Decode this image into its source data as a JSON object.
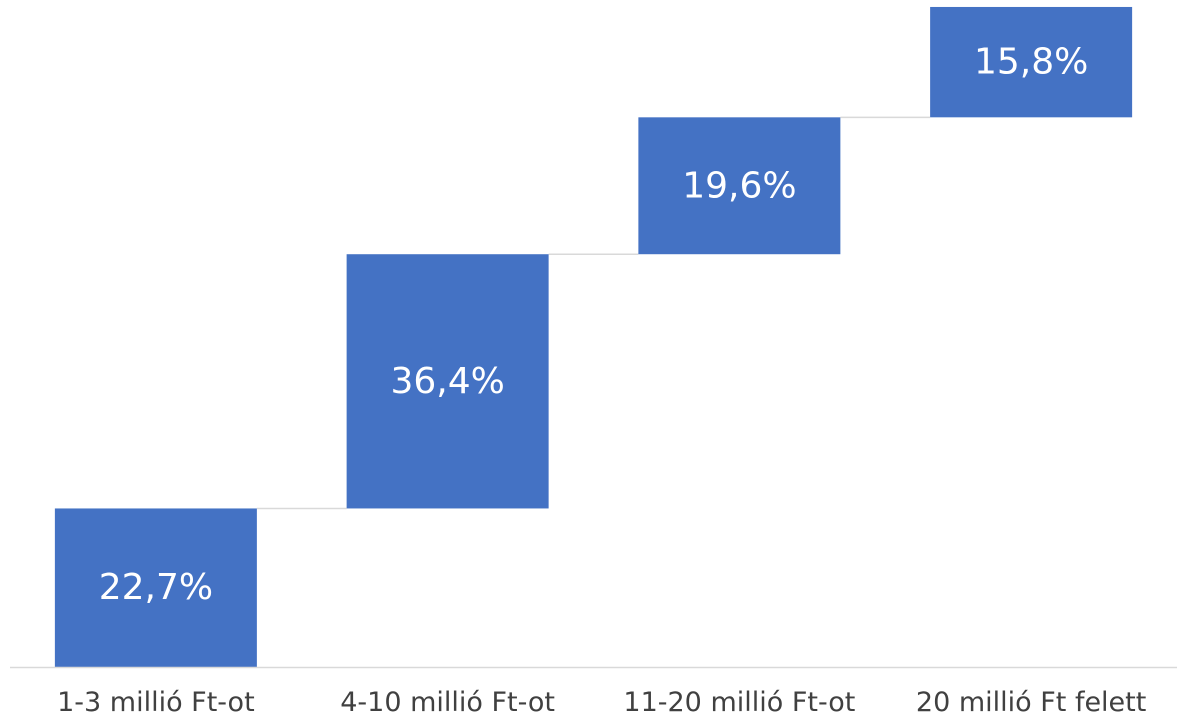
{
  "chart_data": {
    "type": "waterfall",
    "title": "",
    "xlabel": "",
    "ylabel": "",
    "categories": [
      "1-3 millió Ft-ot",
      "4-10 millió Ft-ot",
      "11-20 millió Ft-ot",
      "20 millió Ft felett"
    ],
    "values": [
      22.7,
      36.4,
      19.6,
      15.8
    ],
    "value_labels": [
      "22,7%",
      "36,4%",
      "19,6%",
      "15,8%"
    ],
    "ylim": [
      0,
      100
    ],
    "grid": false,
    "legend": "none",
    "connector_lines": true,
    "colors": {
      "bar": "#4472C4",
      "bar_text": "#ffffff",
      "axis": "#d9d9d9",
      "connector": "#d9d9d9",
      "category_text": "#404040"
    }
  }
}
